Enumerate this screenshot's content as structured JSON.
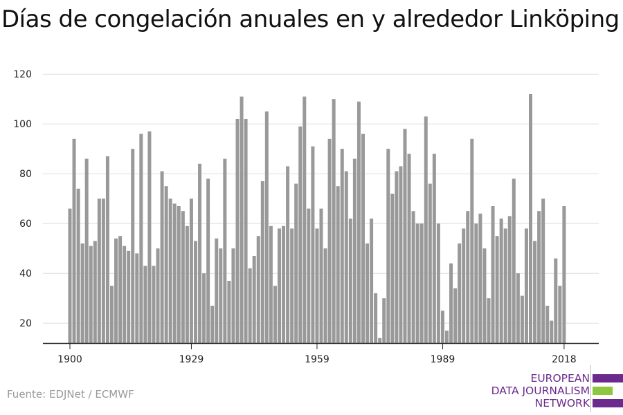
{
  "title": "Días de congelación anuales en y alrededor Linköping",
  "source": "Fuente: EDJNet / ECMWF",
  "logo": {
    "lines": [
      "EUROPEAN",
      "DATA JOURNALISM",
      "NETWORK"
    ],
    "colors": {
      "text": "#6a2a8e",
      "bar_purple": "#6a2a8e",
      "bar_green": "#8dc63f"
    }
  },
  "chart_data": {
    "type": "bar",
    "title": "Días de congelación anuales en y alrededor Linköping",
    "xlabel": "",
    "ylabel": "",
    "x_ticks": [
      1900,
      1929,
      1959,
      1989,
      2018
    ],
    "y_ticks": [
      20,
      40,
      60,
      80,
      100,
      120
    ],
    "ylim": [
      12,
      122
    ],
    "grid": true,
    "bar_color": "#999999",
    "x": [
      1900,
      1901,
      1902,
      1903,
      1904,
      1905,
      1906,
      1907,
      1908,
      1909,
      1910,
      1911,
      1912,
      1913,
      1914,
      1915,
      1916,
      1917,
      1918,
      1919,
      1920,
      1921,
      1922,
      1923,
      1924,
      1925,
      1926,
      1927,
      1928,
      1929,
      1930,
      1931,
      1932,
      1933,
      1934,
      1935,
      1936,
      1937,
      1938,
      1939,
      1940,
      1941,
      1942,
      1943,
      1944,
      1945,
      1946,
      1947,
      1948,
      1949,
      1950,
      1951,
      1952,
      1953,
      1954,
      1955,
      1956,
      1957,
      1958,
      1959,
      1960,
      1961,
      1962,
      1963,
      1964,
      1965,
      1966,
      1967,
      1968,
      1969,
      1970,
      1971,
      1972,
      1973,
      1974,
      1975,
      1976,
      1977,
      1978,
      1979,
      1980,
      1981,
      1982,
      1983,
      1984,
      1985,
      1986,
      1987,
      1988,
      1989,
      1990,
      1991,
      1992,
      1993,
      1994,
      1995,
      1996,
      1997,
      1998,
      1999,
      2000,
      2001,
      2002,
      2003,
      2004,
      2005,
      2006,
      2007,
      2008,
      2009,
      2010,
      2011,
      2012,
      2013,
      2014,
      2015,
      2016,
      2017,
      2018
    ],
    "values": [
      66,
      94,
      74,
      52,
      86,
      51,
      53,
      70,
      70,
      87,
      35,
      54,
      55,
      51,
      49,
      90,
      48,
      96,
      43,
      97,
      43,
      50,
      81,
      75,
      70,
      68,
      67,
      65,
      59,
      70,
      53,
      84,
      40,
      78,
      27,
      54,
      50,
      86,
      37,
      50,
      102,
      111,
      102,
      42,
      47,
      55,
      77,
      105,
      59,
      35,
      58,
      59,
      83,
      58,
      76,
      99,
      111,
      66,
      91,
      58,
      66,
      50,
      94,
      110,
      75,
      90,
      81,
      62,
      86,
      109,
      96,
      52,
      62,
      32,
      14,
      30,
      90,
      72,
      81,
      83,
      98,
      88,
      65,
      60,
      60,
      103,
      76,
      88,
      60,
      25,
      17,
      44,
      34,
      52,
      58,
      65,
      94,
      60,
      64,
      50,
      30,
      67,
      55,
      62,
      58,
      63,
      78,
      40,
      31,
      58,
      112,
      53,
      65,
      70,
      27,
      21,
      46,
      35,
      67
    ]
  }
}
